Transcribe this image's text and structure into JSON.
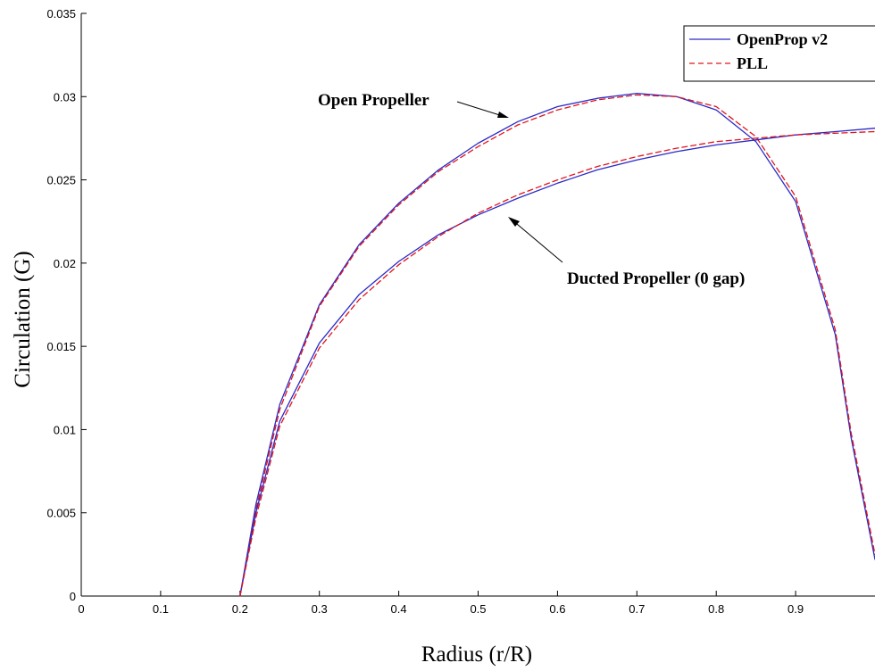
{
  "chart_data": {
    "type": "line",
    "title": "",
    "xlabel": "Radius (r/R)",
    "ylabel": "Circulation (G)",
    "xlim": [
      0,
      1
    ],
    "ylim": [
      0,
      0.035
    ],
    "xticks": [
      "0",
      "0.1",
      "0.2",
      "0.3",
      "0.4",
      "0.5",
      "0.6",
      "0.7",
      "0.8",
      "0.9"
    ],
    "yticks": [
      "0",
      "0.005",
      "0.01",
      "0.015",
      "0.02",
      "0.025",
      "0.03",
      "0.035"
    ],
    "grid": false,
    "legend_placement": "top-right",
    "legend": [
      {
        "label": "OpenProp v2",
        "color": "#2a2ac8",
        "dash": "solid"
      },
      {
        "label": "PLL",
        "color": "#e0151b",
        "dash": "dashed"
      }
    ],
    "series": [
      {
        "group": "Open Propeller",
        "legend": "OpenProp v2",
        "color": "#2a2ac8",
        "dash": "solid",
        "x": [
          0.2,
          0.22,
          0.25,
          0.3,
          0.35,
          0.4,
          0.45,
          0.5,
          0.55,
          0.6,
          0.65,
          0.7,
          0.75,
          0.8,
          0.85,
          0.9,
          0.95,
          0.97,
          1.0
        ],
        "y": [
          0,
          0.0055,
          0.0115,
          0.0175,
          0.0211,
          0.0236,
          0.0256,
          0.0272,
          0.0285,
          0.0294,
          0.0299,
          0.0302,
          0.03,
          0.0292,
          0.0273,
          0.0237,
          0.0157,
          0.0095,
          0.0022
        ]
      },
      {
        "group": "Open Propeller",
        "legend": "PLL",
        "color": "#e0151b",
        "dash": "dashed",
        "x": [
          0.2,
          0.22,
          0.25,
          0.3,
          0.35,
          0.4,
          0.45,
          0.5,
          0.55,
          0.6,
          0.65,
          0.7,
          0.75,
          0.8,
          0.85,
          0.9,
          0.95,
          0.97,
          1.0
        ],
        "y": [
          0,
          0.0052,
          0.0112,
          0.0174,
          0.021,
          0.0235,
          0.0255,
          0.027,
          0.0283,
          0.0292,
          0.0298,
          0.0301,
          0.03,
          0.0294,
          0.0276,
          0.024,
          0.016,
          0.0098,
          0.0025
        ]
      },
      {
        "group": "Ducted Propeller (0 gap)",
        "legend": "OpenProp v2",
        "color": "#2a2ac8",
        "dash": "solid",
        "x": [
          0.2,
          0.22,
          0.25,
          0.3,
          0.35,
          0.4,
          0.45,
          0.5,
          0.55,
          0.6,
          0.65,
          0.7,
          0.75,
          0.8,
          0.85,
          0.9,
          0.95,
          1.0
        ],
        "y": [
          0,
          0.005,
          0.0105,
          0.0152,
          0.0181,
          0.0201,
          0.0217,
          0.0229,
          0.0239,
          0.0248,
          0.0256,
          0.0262,
          0.0267,
          0.0271,
          0.0274,
          0.0277,
          0.0279,
          0.0281
        ]
      },
      {
        "group": "Ducted Propeller (0 gap)",
        "legend": "PLL",
        "color": "#e0151b",
        "dash": "dashed",
        "x": [
          0.2,
          0.22,
          0.25,
          0.3,
          0.35,
          0.4,
          0.45,
          0.5,
          0.55,
          0.6,
          0.65,
          0.7,
          0.75,
          0.8,
          0.85,
          0.9,
          0.95,
          1.0
        ],
        "y": [
          0,
          0.0047,
          0.0102,
          0.0149,
          0.0178,
          0.0199,
          0.0216,
          0.023,
          0.0241,
          0.025,
          0.0258,
          0.0264,
          0.0269,
          0.0273,
          0.0275,
          0.0277,
          0.0278,
          0.0279
        ]
      }
    ],
    "annotations": [
      {
        "text": "Open Propeller",
        "x_from_text": 0.47,
        "arrow_to": [
          0.53,
          0.0284
        ]
      },
      {
        "text": "Ducted Propeller (0 gap)",
        "arrow_to": [
          0.535,
          0.0235
        ]
      }
    ]
  }
}
